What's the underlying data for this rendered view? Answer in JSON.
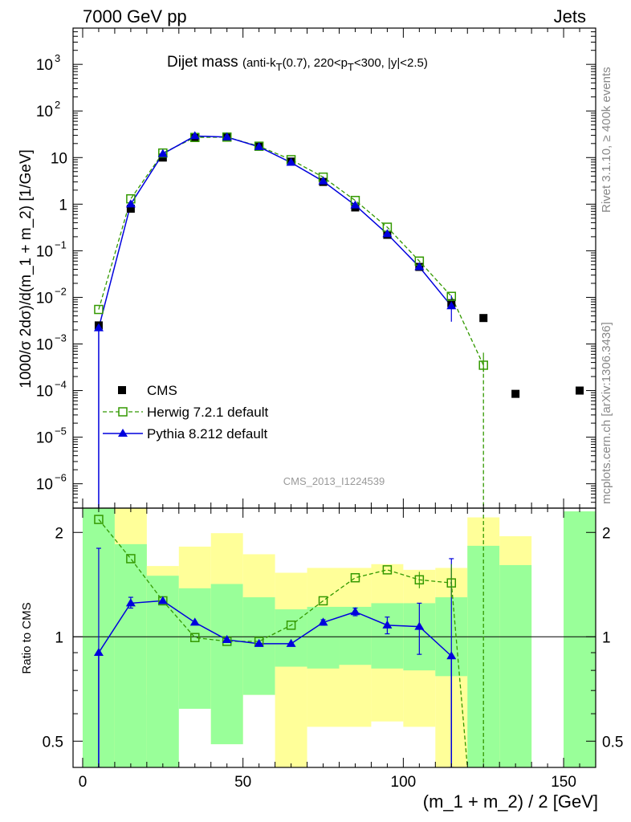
{
  "header": {
    "left": "7000 GeV pp",
    "right": "Jets",
    "side_top": "Rivet 3.1.10, ≥ 400k events",
    "side_bottom": "mcplots.cern.ch [arXiv:1306.3436]"
  },
  "watermark": "CMS_2013_I1224539",
  "title": {
    "main": "Dijet mass",
    "sub_a": "(anti-k",
    "sub_a_sub": "T",
    "sub_b": "(0.7), 220<p",
    "sub_b_sub": "T",
    "sub_c": "<300, |y|<2.5)"
  },
  "colors": {
    "data": "#000000",
    "herwig": "#339900",
    "pythia": "#0000dd",
    "band_inner": "#99ff99",
    "band_outer": "#ffff99"
  },
  "chart_data": [
    {
      "type": "line",
      "panel": "main",
      "ylabel": "1000/σ 2dσ)/d(m_1 + m_2) [1/GeV]",
      "yscale": "log",
      "ylim": [
        3e-07,
        6000
      ],
      "xlim": [
        -3,
        160
      ],
      "y_tick_labels": [
        {
          "value": 1e-06,
          "base": "10",
          "exp": "−6"
        },
        {
          "value": 1e-05,
          "base": "10",
          "exp": "−5"
        },
        {
          "value": 0.0001,
          "base": "10",
          "exp": "−4"
        },
        {
          "value": 0.001,
          "base": "10",
          "exp": "−3"
        },
        {
          "value": 0.01,
          "base": "10",
          "exp": "−2"
        },
        {
          "value": 0.1,
          "base": "10",
          "exp": "−1"
        },
        {
          "value": 1,
          "base": "1",
          "exp": ""
        },
        {
          "value": 10,
          "base": "10",
          "exp": ""
        },
        {
          "value": 100,
          "base": "10",
          "exp": "2"
        },
        {
          "value": 1000,
          "base": "10",
          "exp": "3"
        }
      ],
      "legend": [
        {
          "key": "data",
          "label": "CMS"
        },
        {
          "key": "herwig",
          "label": "Herwig 7.2.1 default"
        },
        {
          "key": "pythia",
          "label": "Pythia 8.212 default"
        }
      ],
      "series": [
        {
          "name": "CMS",
          "style": "data",
          "x": [
            5,
            15,
            25,
            35,
            45,
            55,
            65,
            75,
            85,
            95,
            105,
            115,
            125,
            135,
            155
          ],
          "y": [
            0.0025,
            0.8,
            10,
            27,
            28,
            18,
            8.2,
            3.0,
            0.85,
            0.22,
            0.045,
            0.0075,
            0.0036,
            8.5e-05,
            0.0001
          ]
        },
        {
          "name": "Herwig 7.2.1 default",
          "style": "herwig",
          "x": [
            5,
            15,
            25,
            35,
            45,
            55,
            65,
            75,
            85,
            95,
            105,
            115,
            125
          ],
          "y": [
            0.0055,
            1.3,
            12.5,
            27,
            27.5,
            17.5,
            9.0,
            3.8,
            1.2,
            0.32,
            0.06,
            0.0105,
            0.00035
          ]
        },
        {
          "name": "Pythia 8.212 default",
          "style": "pythia",
          "x": [
            5,
            15,
            25,
            35,
            45,
            55,
            65,
            75,
            85,
            95,
            105,
            115
          ],
          "y": [
            0.0022,
            1.0,
            12.0,
            29,
            27.5,
            17.0,
            7.8,
            3.1,
            0.95,
            0.23,
            0.045,
            0.0065
          ]
        }
      ]
    },
    {
      "type": "line",
      "panel": "ratio",
      "ylabel": "Ratio to CMS",
      "xlabel": "(m_1 + m_2) / 2 [GeV]",
      "yscale": "log",
      "ylim": [
        0.42,
        2.35
      ],
      "xlim": [
        -3,
        160
      ],
      "y_tick_labels": [
        {
          "value": 0.5,
          "label": "0.5"
        },
        {
          "value": 1,
          "label": "1"
        },
        {
          "value": 2,
          "label": "2"
        }
      ],
      "x_tick_labels": [
        {
          "value": 0,
          "label": "0"
        },
        {
          "value": 50,
          "label": "50"
        },
        {
          "value": 100,
          "label": "100"
        },
        {
          "value": 150,
          "label": "150"
        }
      ],
      "bands": [
        {
          "x0": 0,
          "x1": 10,
          "inner": [
            0.3,
            3.0
          ],
          "outer": [
            0.3,
            3.0
          ]
        },
        {
          "x0": 10,
          "x1": 20,
          "inner": [
            0.3,
            1.85
          ],
          "outer": [
            0.3,
            3.0
          ]
        },
        {
          "x0": 20,
          "x1": 30,
          "inner": [
            0.3,
            1.5
          ],
          "outer": [
            0.68,
            1.6
          ]
        },
        {
          "x0": 30,
          "x1": 40,
          "inner": [
            0.62,
            1.38
          ],
          "outer": [
            0.65,
            1.82
          ]
        },
        {
          "x0": 40,
          "x1": 50,
          "inner": [
            0.49,
            1.42
          ],
          "outer": [
            0.49,
            1.99
          ]
        },
        {
          "x0": 50,
          "x1": 60,
          "inner": [
            0.68,
            1.3
          ],
          "outer": [
            0.68,
            1.73
          ]
        },
        {
          "x0": 60,
          "x1": 70,
          "inner": [
            0.82,
            1.2
          ],
          "outer": [
            0.3,
            1.53
          ]
        },
        {
          "x0": 70,
          "x1": 80,
          "inner": [
            0.81,
            1.22
          ],
          "outer": [
            0.55,
            1.58
          ]
        },
        {
          "x0": 80,
          "x1": 90,
          "inner": [
            0.83,
            1.22
          ],
          "outer": [
            0.55,
            1.58
          ]
        },
        {
          "x0": 90,
          "x1": 100,
          "inner": [
            0.81,
            1.25
          ],
          "outer": [
            0.57,
            1.62
          ]
        },
        {
          "x0": 100,
          "x1": 110,
          "inner": [
            0.8,
            1.25
          ],
          "outer": [
            0.55,
            1.56
          ]
        },
        {
          "x0": 110,
          "x1": 120,
          "inner": [
            0.77,
            1.3
          ],
          "outer": [
            0.4,
            1.58
          ]
        },
        {
          "x0": 120,
          "x1": 130,
          "inner": [
            0.3,
            1.83
          ],
          "outer": [
            0.3,
            2.21
          ]
        },
        {
          "x0": 130,
          "x1": 140,
          "inner": [
            0.3,
            1.61
          ],
          "outer": [
            0.3,
            1.95
          ]
        },
        {
          "x0": 150,
          "x1": 160,
          "inner": [
            0.3,
            2.3
          ],
          "outer": [
            0.3,
            2.3
          ]
        }
      ],
      "series": [
        {
          "name": "Herwig 7.2.1 default",
          "style": "herwig",
          "x": [
            5,
            15,
            25,
            35,
            45,
            55,
            65,
            75,
            85,
            95,
            105,
            115,
            120
          ],
          "y": [
            2.18,
            1.68,
            1.27,
            0.995,
            0.97,
            0.97,
            1.08,
            1.27,
            1.48,
            1.56,
            1.46,
            1.43,
            0.3
          ]
        },
        {
          "name": "Pythia 8.212 default",
          "style": "pythia",
          "x": [
            5,
            15,
            25,
            35,
            45,
            55,
            65,
            75,
            85,
            95,
            105,
            115
          ],
          "y": [
            0.9,
            1.25,
            1.27,
            1.1,
            0.98,
            0.955,
            0.955,
            1.1,
            1.18,
            1.08,
            1.07,
            0.88
          ],
          "err_lo": [
            0.6,
            0.04,
            0,
            0,
            0,
            0,
            0,
            0.02,
            0.03,
            0.06,
            0.18,
            0.6
          ],
          "err_hi": [
            0.9,
            0.05,
            0,
            0,
            0,
            0,
            0,
            0.02,
            0.03,
            0.06,
            0.18,
            0.8
          ]
        }
      ]
    }
  ]
}
